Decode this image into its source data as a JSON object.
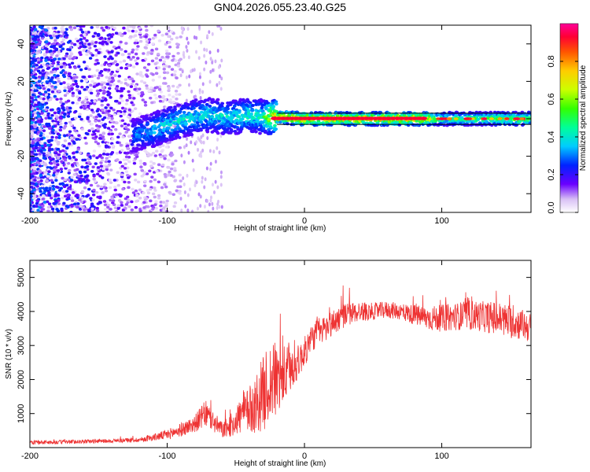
{
  "title": "GN04.2026.055.23.40.G25",
  "chart_data": [
    {
      "type": "heatmap",
      "name": "spectrogram",
      "title": "GN04.2026.055.23.40.G25",
      "xlabel": "Height of straight line (km)",
      "ylabel": "Frequency (Hz)",
      "xlim": [
        -200,
        165
      ],
      "ylim": [
        -50,
        50
      ],
      "xticks": [
        -200,
        -100,
        0,
        100
      ],
      "yticks": [
        -40,
        -20,
        0,
        20,
        40
      ],
      "xtick_labels": [
        "-200",
        "-100",
        "0",
        "100"
      ],
      "ytick_labels": [
        "-40",
        "-20",
        "0",
        "20",
        "40"
      ],
      "ridge": [
        {
          "x": -120,
          "y": -8,
          "amp": 0.35
        },
        {
          "x": -110,
          "y": -6,
          "amp": 0.4
        },
        {
          "x": -100,
          "y": -3,
          "amp": 0.45
        },
        {
          "x": -90,
          "y": -1,
          "amp": 0.45
        },
        {
          "x": -80,
          "y": 1,
          "amp": 0.45
        },
        {
          "x": -70,
          "y": 2,
          "amp": 0.45
        },
        {
          "x": -60,
          "y": 1,
          "amp": 0.45
        },
        {
          "x": -50,
          "y": 1,
          "amp": 0.45
        },
        {
          "x": -40,
          "y": 2,
          "amp": 0.5
        },
        {
          "x": -30,
          "y": 1,
          "amp": 0.5
        },
        {
          "x": -22,
          "y": 1,
          "amp": 0.9
        },
        {
          "x": 0,
          "y": 0,
          "amp": 0.95
        },
        {
          "x": 40,
          "y": 0,
          "amp": 0.95
        },
        {
          "x": 85,
          "y": 0,
          "amp": 0.95
        },
        {
          "x": 100,
          "y": 0,
          "amp": 0.55
        },
        {
          "x": 130,
          "y": 0,
          "amp": 0.6
        },
        {
          "x": 165,
          "y": 0,
          "amp": 0.7
        }
      ]
    },
    {
      "type": "line",
      "name": "snr",
      "xlabel": "Height of straight line (km)",
      "ylabel": "SNR (10 * v/v)",
      "xlim": [
        -200,
        165
      ],
      "ylim": [
        0,
        5500
      ],
      "xticks": [
        -200,
        -100,
        0,
        100
      ],
      "yticks": [
        1000,
        2000,
        3000,
        4000,
        5000
      ],
      "xtick_labels": [
        "-200",
        "-100",
        "0",
        "100"
      ],
      "ytick_labels": [
        "1000",
        "2000",
        "3000",
        "4000",
        "5000"
      ],
      "color": "#ee3333",
      "x": [
        -200,
        -180,
        -160,
        -140,
        -120,
        -110,
        -100,
        -90,
        -80,
        -72,
        -65,
        -60,
        -55,
        -50,
        -45,
        -40,
        -35,
        -30,
        -25,
        -20,
        -15,
        -10,
        -5,
        0,
        5,
        10,
        15,
        20,
        25,
        30,
        40,
        50,
        60,
        70,
        80,
        90,
        100,
        110,
        120,
        130,
        140,
        150,
        160,
        165
      ],
      "y": [
        150,
        160,
        180,
        200,
        230,
        300,
        380,
        520,
        700,
        1000,
        700,
        520,
        600,
        800,
        1000,
        1100,
        1300,
        1600,
        1900,
        2000,
        2100,
        2300,
        2500,
        2800,
        3200,
        3400,
        3500,
        3650,
        3800,
        3900,
        4000,
        4000,
        4050,
        4000,
        3900,
        3800,
        3800,
        3850,
        3900,
        3850,
        3800,
        3700,
        3600,
        3500
      ],
      "noise_amplitude": [
        60,
        60,
        60,
        60,
        70,
        100,
        150,
        200,
        250,
        400,
        300,
        250,
        300,
        450,
        600,
        700,
        900,
        1100,
        1200,
        1100,
        900,
        700,
        500,
        450,
        420,
        420,
        400,
        400,
        380,
        350,
        300,
        250,
        250,
        250,
        300,
        350,
        400,
        400,
        450,
        450,
        500,
        500,
        450,
        450
      ]
    }
  ],
  "colorbar": {
    "label": "Normalized spectral amplitude",
    "range": [
      0,
      1
    ],
    "ticks": [
      0.0,
      0.2,
      0.4,
      0.6,
      0.8
    ],
    "tick_labels": [
      "0.0",
      "0.2",
      "0.4",
      "0.6",
      "0.8"
    ]
  }
}
